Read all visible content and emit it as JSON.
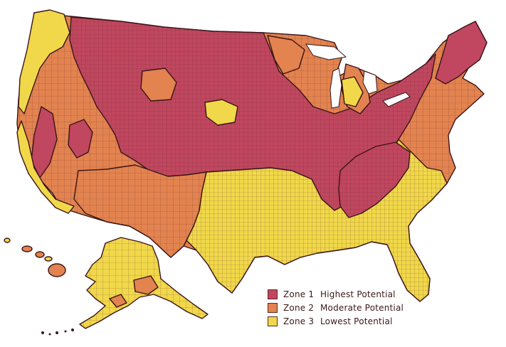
{
  "colors": {
    "zone1": "#c0475f",
    "zone2": "#e3834f",
    "zone3": "#f1d84a",
    "border": "#3a1418",
    "water": "#ffffff"
  },
  "legend": {
    "items": [
      {
        "zone": "Zone 1",
        "description": "Highest Potential",
        "color": "#c0475f"
      },
      {
        "zone": "Zone 2",
        "description": "Moderate Potential",
        "color": "#e3834f"
      },
      {
        "zone": "Zone 3",
        "description": "Lowest Potential",
        "color": "#f1d84a"
      }
    ]
  }
}
